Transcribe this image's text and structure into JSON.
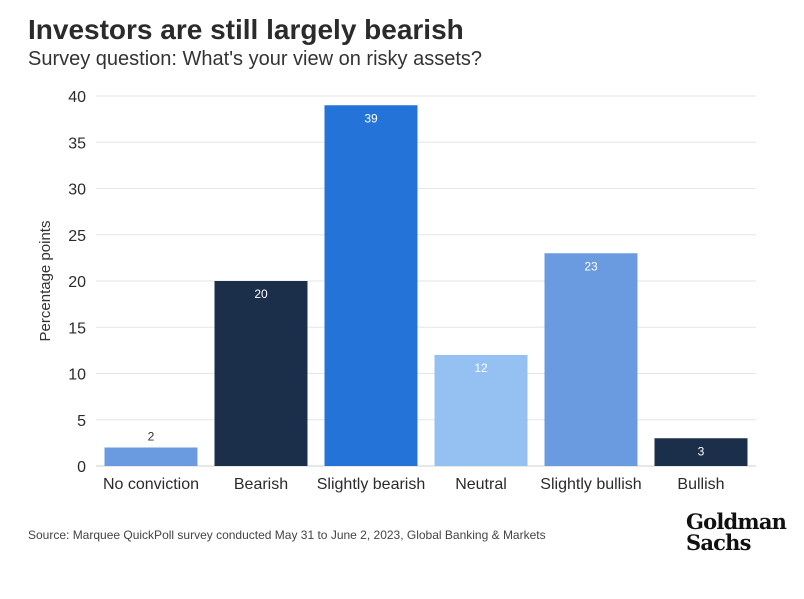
{
  "chart_data": {
    "type": "bar",
    "title": "Investors are still largely bearish",
    "subtitle": "Survey question: What's your view on risky assets?",
    "ylabel": "Percentage points",
    "xlabel": "",
    "ylim": [
      0,
      40
    ],
    "yticks": [
      0,
      5,
      10,
      15,
      20,
      25,
      30,
      35,
      40
    ],
    "grid": true,
    "categories": [
      "No conviction",
      "Bearish",
      "Slightly bearish",
      "Neutral",
      "Slightly bullish",
      "Bullish"
    ],
    "values": [
      2,
      20,
      39,
      12,
      23,
      3
    ],
    "data_labels": [
      "2",
      "20",
      "39",
      "12",
      "23",
      "3"
    ],
    "colors": [
      "#6a9be0",
      "#1b2f4b",
      "#2473d9",
      "#95c1f2",
      "#6a9be0",
      "#1b2f4b"
    ]
  },
  "footer": {
    "source": "Source: Marquee QuickPoll survey conducted May 31 to June 2, 2023, Global Banking & Markets"
  },
  "logo": {
    "line1": "Goldman",
    "line2": "Sachs"
  }
}
